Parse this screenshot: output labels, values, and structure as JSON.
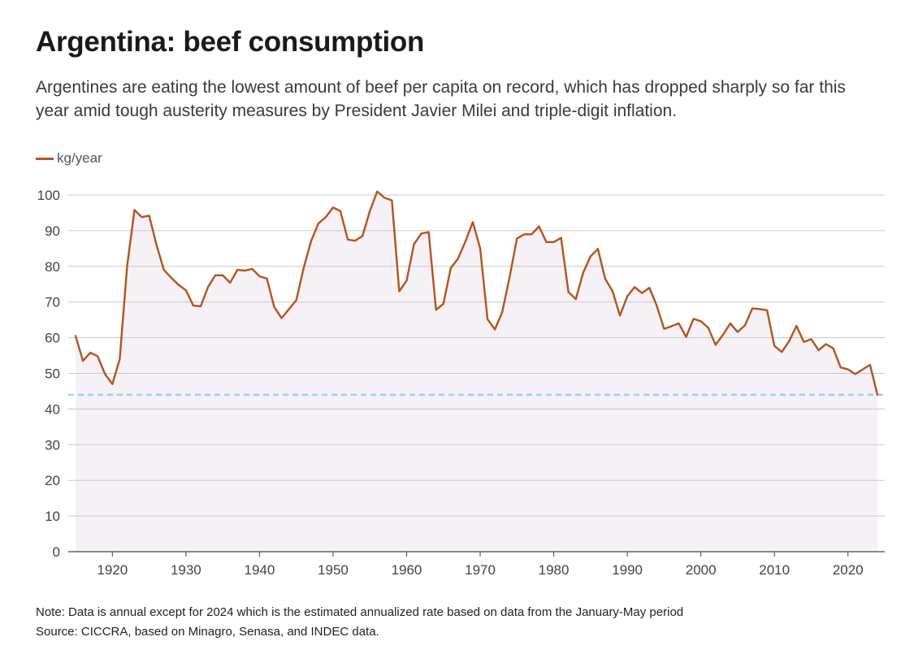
{
  "header": {
    "title": "Argentina: beef consumption",
    "subtitle": "Argentines are eating the lowest amount of beef per capita on record, which has dropped sharply so far this year amid tough austerity measures by President Javier Milei and triple-digit inflation."
  },
  "footer": {
    "note": "Note: Data is annual except for 2024 which is the estimated annualized rate based on data from the January-May period",
    "source": "Source: CICCRA, based on Minagro, Senasa, and INDEC data."
  },
  "colors": {
    "line": "#b5531e",
    "area": "#f5f1f7",
    "reference": "#9fd0e6",
    "grid": "#c8c8c8"
  },
  "chart_data": {
    "type": "line",
    "title": "Argentina: beef consumption",
    "xlabel": "",
    "ylabel": "",
    "legend": "kg/year",
    "legend_position": "top-left",
    "xlim": [
      1914,
      2025
    ],
    "ylim": [
      0,
      100
    ],
    "xticks": [
      1920,
      1930,
      1940,
      1950,
      1960,
      1970,
      1980,
      1990,
      2000,
      2010,
      2020
    ],
    "yticks": [
      0,
      10,
      20,
      30,
      40,
      50,
      60,
      70,
      80,
      90,
      100
    ],
    "reference_line": {
      "value": 44,
      "style": "dashed"
    },
    "series": [
      {
        "name": "kg/year",
        "x": [
          1915,
          1916,
          1917,
          1918,
          1919,
          1920,
          1921,
          1922,
          1923,
          1924,
          1925,
          1926,
          1927,
          1928,
          1929,
          1930,
          1931,
          1932,
          1933,
          1934,
          1935,
          1936,
          1937,
          1938,
          1939,
          1940,
          1941,
          1942,
          1943,
          1944,
          1945,
          1946,
          1947,
          1948,
          1949,
          1950,
          1951,
          1952,
          1953,
          1954,
          1955,
          1956,
          1957,
          1958,
          1959,
          1960,
          1961,
          1962,
          1963,
          1964,
          1965,
          1966,
          1967,
          1968,
          1969,
          1970,
          1971,
          1972,
          1973,
          1974,
          1975,
          1976,
          1977,
          1978,
          1979,
          1980,
          1981,
          1982,
          1983,
          1984,
          1985,
          1986,
          1987,
          1988,
          1989,
          1990,
          1991,
          1992,
          1993,
          1994,
          1995,
          1996,
          1997,
          1998,
          1999,
          2000,
          2001,
          2002,
          2003,
          2004,
          2005,
          2006,
          2007,
          2008,
          2009,
          2010,
          2011,
          2012,
          2013,
          2014,
          2015,
          2016,
          2017,
          2018,
          2019,
          2020,
          2021,
          2022,
          2023,
          2024
        ],
        "values": [
          60.5,
          53.5,
          55.8,
          54.8,
          49.8,
          47,
          54,
          80,
          95.8,
          93.8,
          94.2,
          86,
          79,
          76.8,
          74.8,
          73.3,
          69,
          68.8,
          74.2,
          77.5,
          77.5,
          75.4,
          79,
          78.8,
          79.3,
          77.2,
          76.6,
          68.6,
          65.5,
          68,
          70.5,
          79.5,
          87,
          92,
          93.8,
          96.5,
          95.5,
          87.5,
          87.2,
          88.5,
          95.5,
          101,
          99.2,
          98.5,
          73,
          76,
          86.2,
          89.2,
          89.6,
          67.8,
          69.5,
          79.5,
          82.2,
          87,
          92.4,
          85,
          65.2,
          62.3,
          67.2,
          77,
          87.8,
          89,
          89,
          91.2,
          86.8,
          86.8,
          88,
          72.8,
          70.8,
          78.2,
          82.8,
          84.9,
          76.5,
          73,
          66.2,
          71.6,
          74.2,
          72.5,
          74,
          69,
          62.5,
          63.2,
          64,
          60.2,
          65.3,
          64.6,
          62.8,
          58,
          60.8,
          64,
          61.6,
          63.5,
          68.2,
          68,
          67.7,
          57.7,
          56,
          59,
          63.3,
          58.8,
          59.6,
          56.5,
          58.2,
          57,
          51.7,
          51.1,
          49.8,
          51.1,
          52.4,
          44
        ]
      }
    ]
  }
}
